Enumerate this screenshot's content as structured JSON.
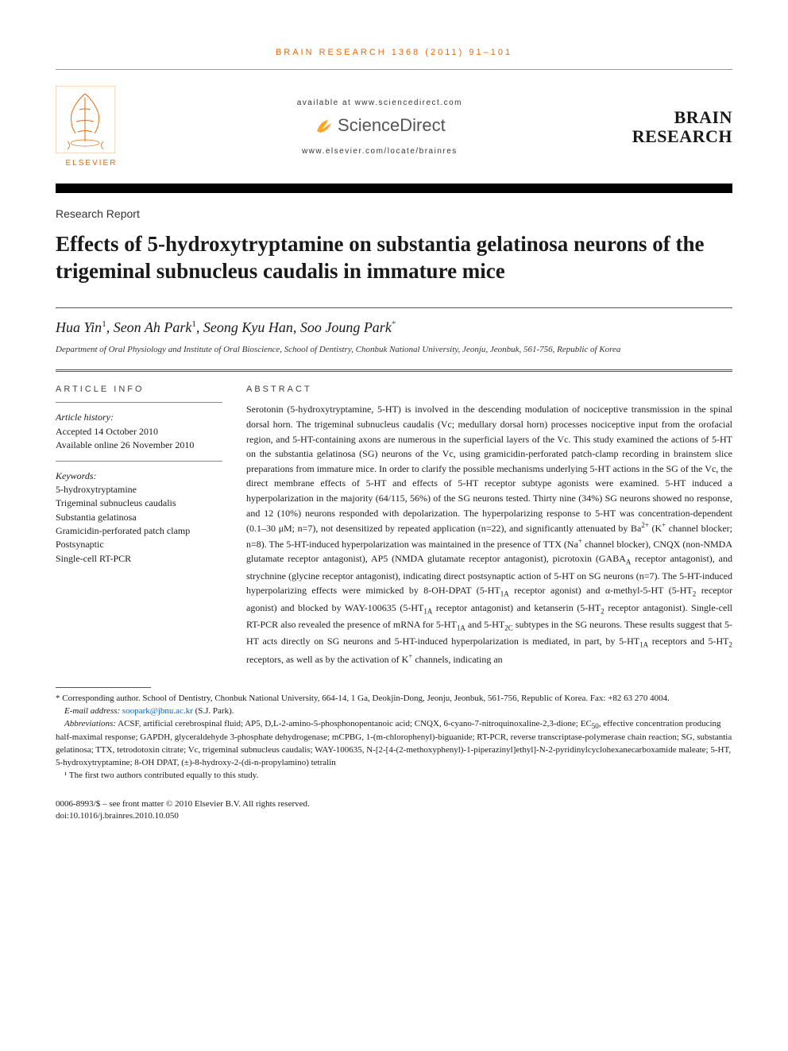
{
  "header": {
    "citation": "BRAIN RESEARCH 1368 (2011) 91–101",
    "available_at": "available at www.sciencedirect.com",
    "sd_text": "ScienceDirect",
    "locate_url": "www.elsevier.com/locate/brainres",
    "elsevier": "ELSEVIER",
    "journal_line1": "BRAIN",
    "journal_line2": "RESEARCH"
  },
  "article": {
    "type": "Research Report",
    "title": "Effects of 5-hydroxytryptamine on substantia gelatinosa neurons of the trigeminal subnucleus caudalis in immature mice",
    "authors_html": "Hua Yin<sup>1</sup>, Seon Ah Park<sup>1</sup>, Seong Kyu Han, Soo Joung Park<sup class=\"star\">*</sup>",
    "affiliation": "Department of Oral Physiology and Institute of Oral Bioscience, School of Dentistry, Chonbuk National University, Jeonju, Jeonbuk, 561-756, Republic of Korea"
  },
  "article_info": {
    "head": "ARTICLE INFO",
    "history_label": "Article history:",
    "accepted": "Accepted 14 October 2010",
    "online": "Available online 26 November 2010",
    "keywords_label": "Keywords:",
    "keywords": [
      "5-hydroxytryptamine",
      "Trigeminal subnucleus caudalis",
      "Substantia gelatinosa",
      "Gramicidin-perforated patch clamp",
      "Postsynaptic",
      "Single-cell RT-PCR"
    ]
  },
  "abstract": {
    "head": "ABSTRACT",
    "text": "Serotonin (5-hydroxytryptamine, 5-HT) is involved in the descending modulation of nociceptive transmission in the spinal dorsal horn. The trigeminal subnucleus caudalis (Vc; medullary dorsal horn) processes nociceptive input from the orofacial region, and 5-HT-containing axons are numerous in the superficial layers of the Vc. This study examined the actions of 5-HT on the substantia gelatinosa (SG) neurons of the Vc, using gramicidin-perforated patch-clamp recording in brainstem slice preparations from immature mice. In order to clarify the possible mechanisms underlying 5-HT actions in the SG of the Vc, the direct membrane effects of 5-HT and effects of 5-HT receptor subtype agonists were examined. 5-HT induced a hyperpolarization in the majority (64/115, 56%) of the SG neurons tested. Thirty nine (34%) SG neurons showed no response, and 12 (10%) neurons responded with depolarization. The hyperpolarizing response to 5-HT was concentration-dependent (0.1–30 μM; n=7), not desensitized by repeated application (n=22), and significantly attenuated by Ba²⁺ (K⁺ channel blocker; n=8). The 5-HT-induced hyperpolarization was maintained in the presence of TTX (Na⁺ channel blocker), CNQX (non-NMDA glutamate receptor antagonist), AP5 (NMDA glutamate receptor antagonist), picrotoxin (GABA_A receptor antagonist), and strychnine (glycine receptor antagonist), indicating direct postsynaptic action of 5-HT on SG neurons (n=7). The 5-HT-induced hyperpolarizing effects were mimicked by 8-OH-DPAT (5-HT_1A receptor agonist) and α-methyl-5-HT (5-HT_2 receptor agonist) and blocked by WAY-100635 (5-HT_1A receptor antagonist) and ketanserin (5-HT_2 receptor antagonist). Single-cell RT-PCR also revealed the presence of mRNA for 5-HT_1A and 5-HT_2C subtypes in the SG neurons. These results suggest that 5-HT acts directly on SG neurons and 5-HT-induced hyperpolarization is mediated, in part, by 5-HT_1A receptors and 5-HT_2 receptors, as well as by the activation of K⁺ channels, indicating an"
  },
  "footnotes": {
    "corresponding": "* Corresponding author. School of Dentistry, Chonbuk National University, 664-14, 1 Ga, Deokjin-Dong, Jeonju, Jeonbuk, 561-756, Republic of Korea. Fax: +82 63 270 4004.",
    "email_label": "E-mail address:",
    "email": "soopark@jbnu.ac.kr",
    "email_suffix": " (S.J. Park).",
    "abbrev_label": "Abbreviations:",
    "abbreviations": "ACSF, artificial cerebrospinal fluid; AP5, D,L-2-amino-5-phosphonopentanoic acid; CNQX, 6-cyano-7-nitroquinoxaline-2,3-dione; EC₅₀, effective concentration producing half-maximal response; GAPDH, glyceraldehyde 3-phosphate dehydrogenase; mCPBG, 1-(m-chlorophenyl)-biguanide; RT-PCR, reverse transcriptase-polymerase chain reaction; SG, substantia gelatinosa; TTX, tetrodotoxin citrate; Vc, trigeminal subnucleus caudalis; WAY-100635, N-[2-[4-(2-methoxyphenyl)-1-piperazinyl]ethyl]-N-2-pyridinylcyclohexanecarboxamide maleate; 5-HT, 5-hydroxytryptamine; 8-OH DPAT, (±)-8-hydroxy-2-(di-n-propylamino) tetralin",
    "equal_contrib": "¹ The first two authors contributed equally to this study."
  },
  "footer": {
    "issn": "0006-8993/$ – see front matter © 2010 Elsevier B.V. All rights reserved.",
    "doi": "doi:10.1016/j.brainres.2010.10.050"
  },
  "colors": {
    "accent_orange": "#e8690b",
    "link_blue": "#0066cc",
    "text": "#1a1a1a",
    "rule_gray": "#555555"
  },
  "typography": {
    "title_size_pt": 20,
    "body_size_pt": 9,
    "authors_size_pt": 14
  }
}
